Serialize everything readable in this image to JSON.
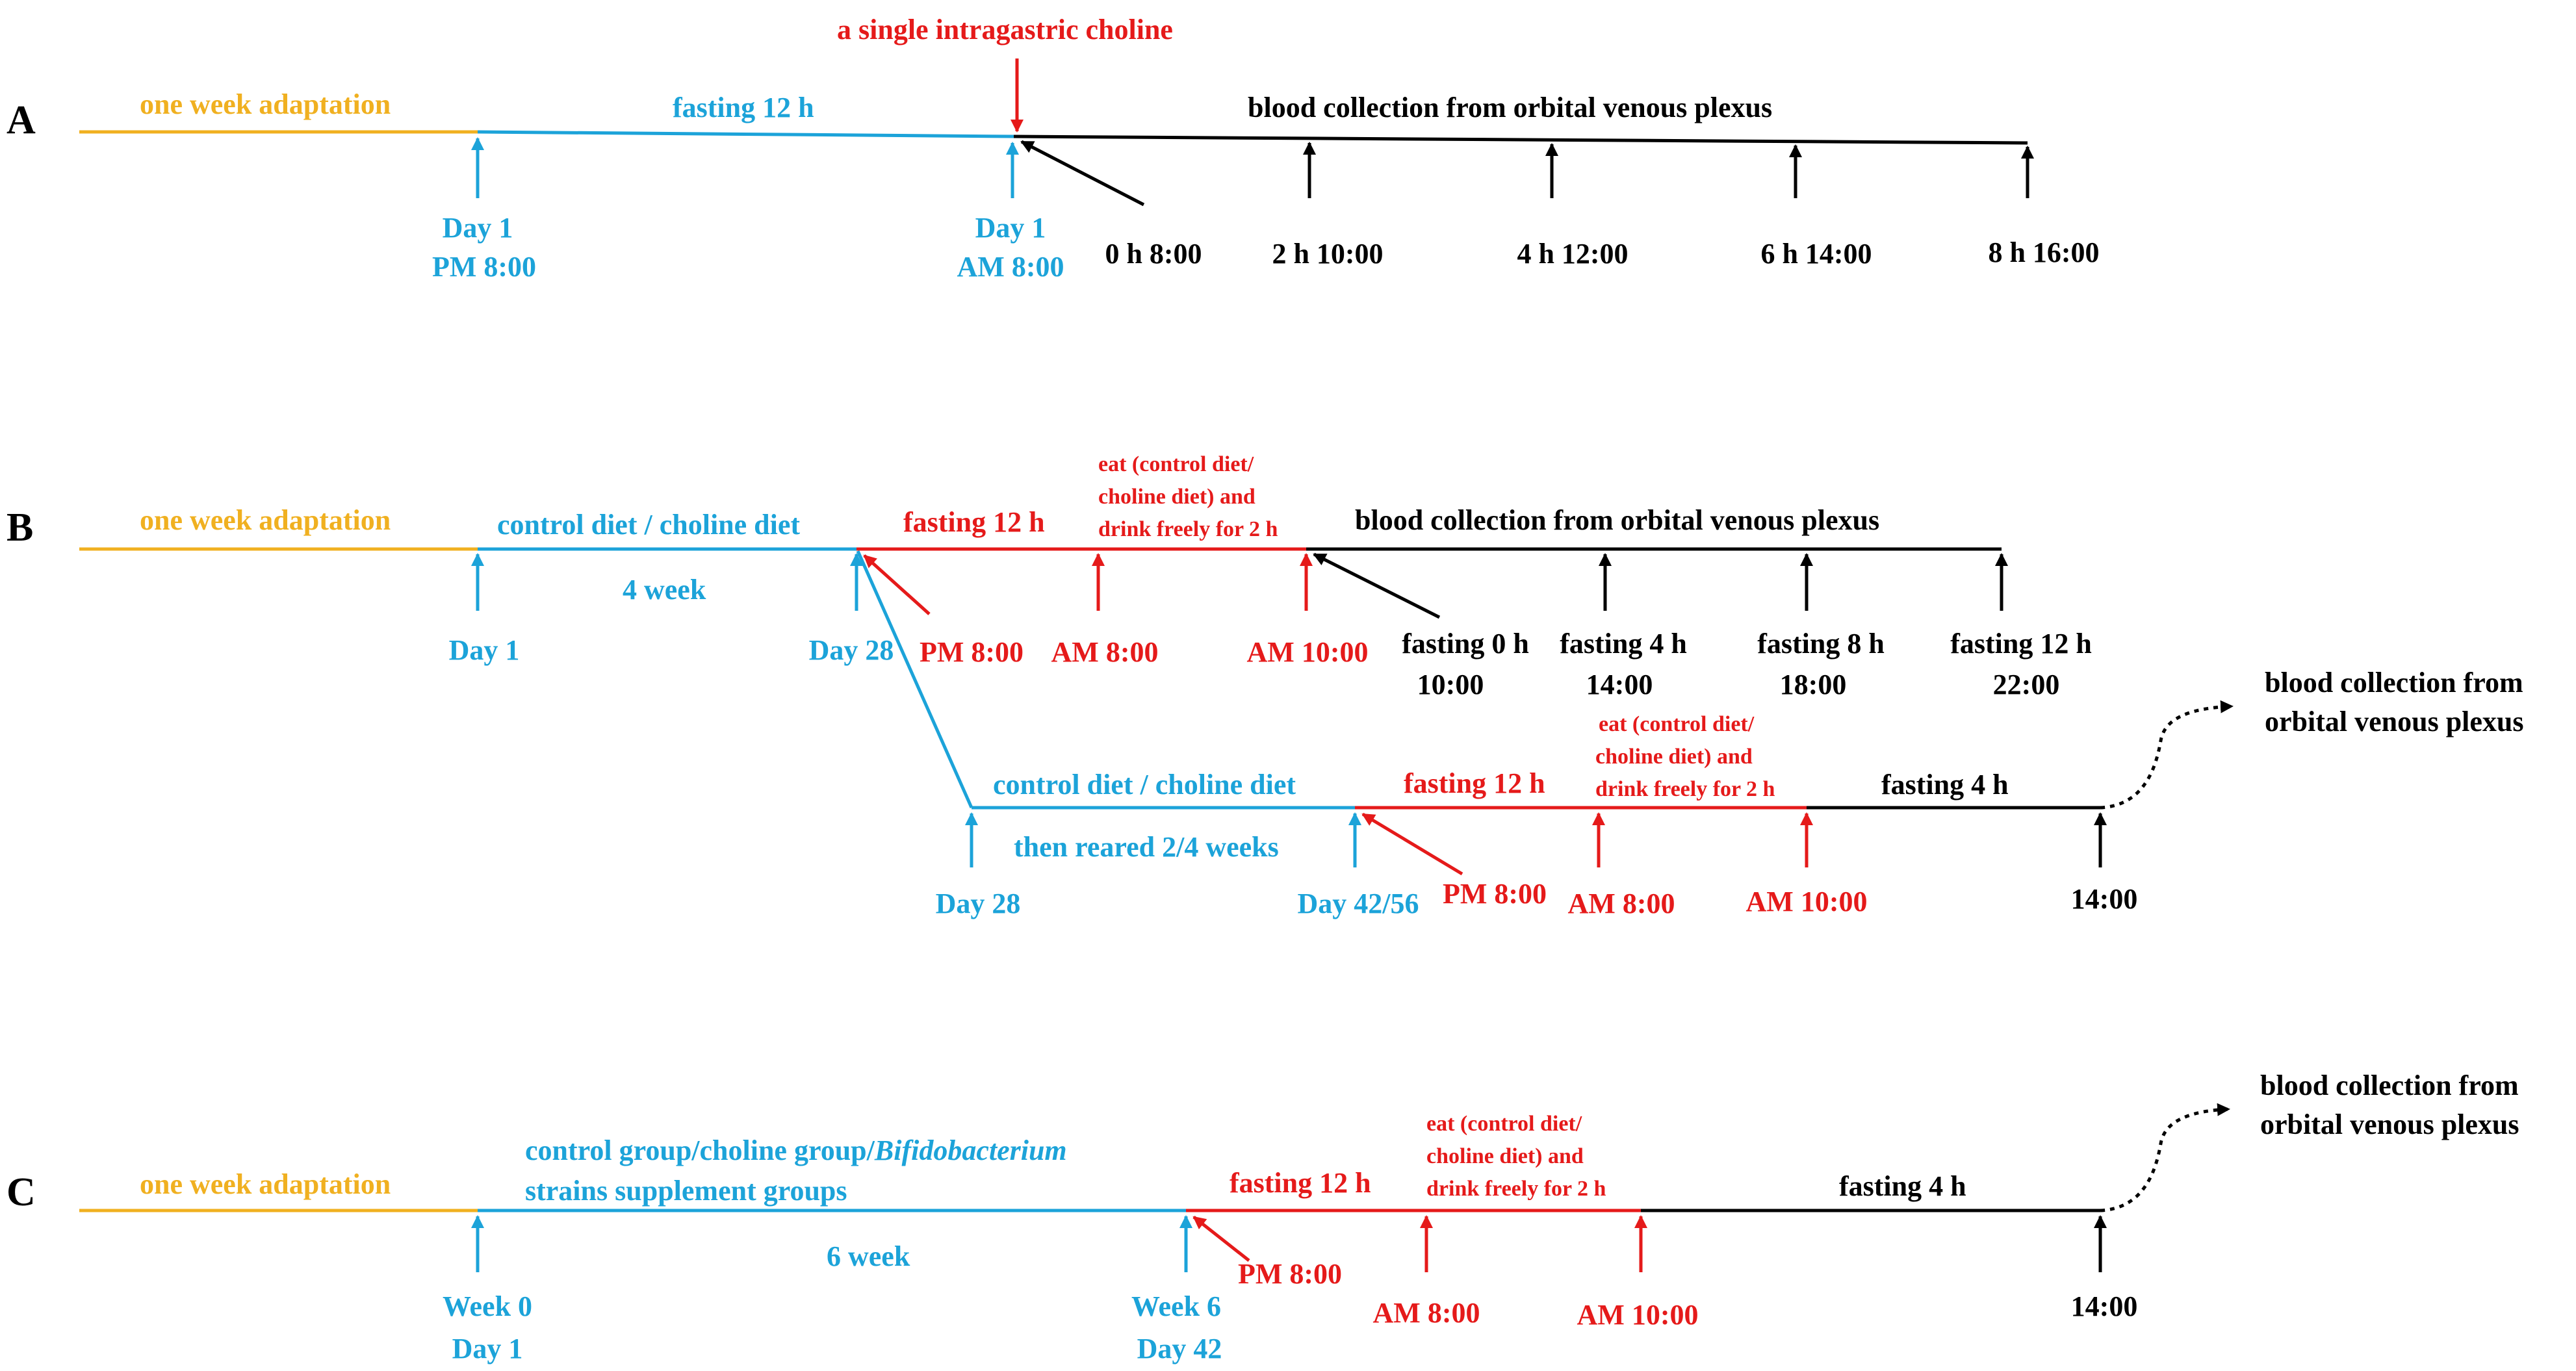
{
  "colors": {
    "adaptation": "#f0b020",
    "period": "#1ca3d9",
    "fasting": "#e51a1a",
    "sampling": "#000000"
  },
  "panel_a": {
    "letter": "A",
    "adaptation": "one week adaptation",
    "fasting": "fasting 12 h",
    "gavage": "a single intragastric choline",
    "blood": "blood collection from orbital venous plexus",
    "day_start": "Day 1",
    "day_start_time": "PM 8:00",
    "day_gavage": "Day 1",
    "day_gavage_time": "AM 8:00",
    "t0": "0 h 8:00",
    "t2": "2 h 10:00",
    "t4": "4 h 12:00",
    "t6": "6 h 14:00",
    "t8": "8 h 16:00"
  },
  "panel_b": {
    "letter": "B",
    "adaptation": "one week adaptation",
    "diet": "control diet / choline diet",
    "duration": "4 week",
    "fasting": "fasting 12 h",
    "eat_l1": "eat (control diet/",
    "eat_l2": "choline diet) and",
    "eat_l3": "drink freely for 2 h",
    "blood": "blood collection from orbital venous plexus",
    "day1": "Day 1",
    "day28": "Day 28",
    "pm8": "PM 8:00",
    "am8": "AM 8:00",
    "am10": "AM 10:00",
    "f0_l1": "fasting 0 h",
    "f0_l2": "10:00",
    "f4_l1": "fasting 4 h",
    "f4_l2": "14:00",
    "f8_l1": "fasting 8 h",
    "f8_l2": "18:00",
    "f12_l1": "fasting 12 h",
    "f12_l2": "22:00",
    "b2_diet": "control diet / choline diet",
    "b2_reared": "then reared 2/4 weeks",
    "b2_fasting": "fasting 12 h",
    "b2_eat_l1": "eat (control diet/",
    "b2_eat_l2": "choline diet) and",
    "b2_eat_l3": "drink freely for 2 h",
    "b2_fasting4": "fasting 4 h",
    "b2_blood_l1": "blood collection from",
    "b2_blood_l2": "orbital venous plexus",
    "b2_day28": "Day 28",
    "b2_day42": "Day 42/56",
    "b2_pm8": "PM 8:00",
    "b2_am8": "AM 8:00",
    "b2_am10": "AM 10:00",
    "b2_t14": "14:00"
  },
  "panel_c": {
    "letter": "C",
    "adaptation": "one week adaptation",
    "groups_l1": "control group/choline group/",
    "groups_italic": "Bifidobacterium",
    "groups_l2": "strains supplement groups",
    "duration": "6 week",
    "fasting": "fasting 12 h",
    "eat_l1": "eat (control diet/",
    "eat_l2": "choline diet) and",
    "eat_l3": "drink freely for 2 h",
    "fasting4": "fasting 4 h",
    "blood_l1": "blood collection from",
    "blood_l2": "orbital venous plexus",
    "week0": "Week 0",
    "day1": "Day 1",
    "week6": "Week 6",
    "day42": "Day 42",
    "pm8": "PM 8:00",
    "am8": "AM 8:00",
    "am10": "AM 10:00",
    "t14": "14:00"
  }
}
